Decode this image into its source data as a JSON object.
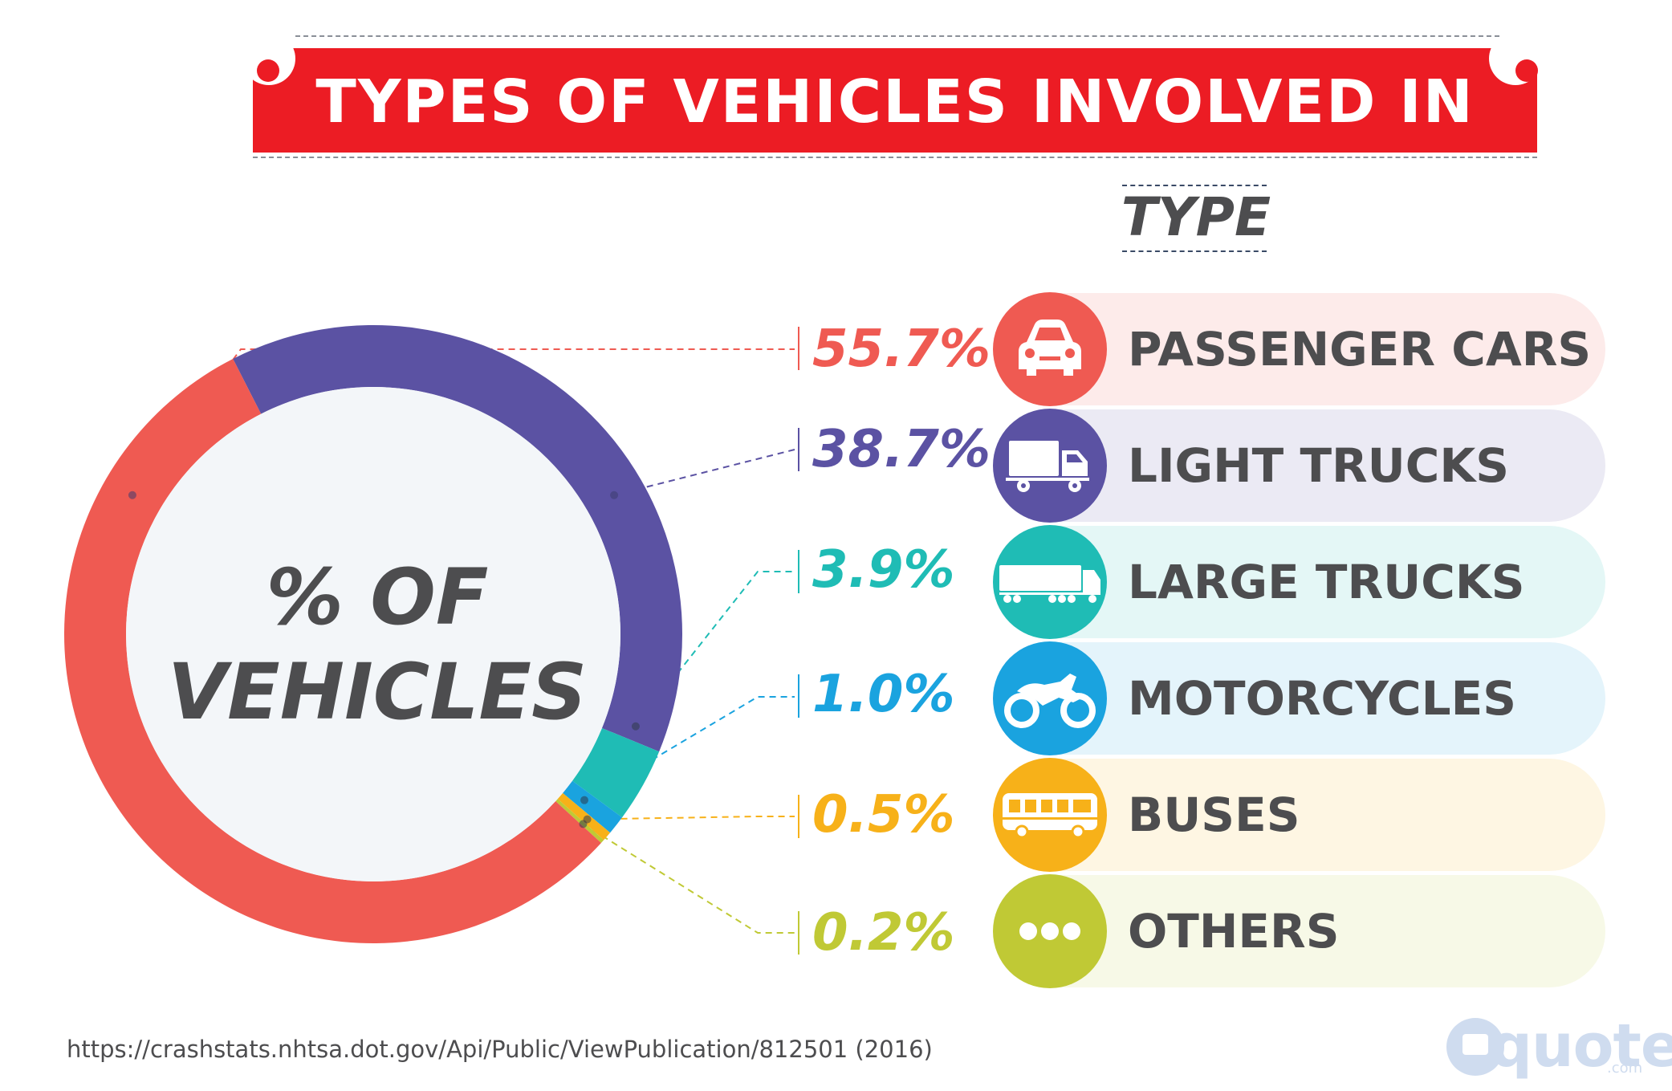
{
  "colors": {
    "banner": "#ec1c24",
    "passenger_cars": "#ef5a52",
    "light_trucks": "#5b52a3",
    "large_trucks": "#1fbcb5",
    "motorcycles": "#1aa3df",
    "buses": "#f7b119",
    "others": "#c0c935",
    "center_fill": "#f3f6f9",
    "text_dark": "#4d4d4f"
  },
  "title": "Types of Vehicles Involved in Crashes",
  "type_heading": "TYPE",
  "center_label_line1": "% OF",
  "center_label_line2": "VEHICLES",
  "chart_data": {
    "type": "pie",
    "title": "Types of Vehicles Involved in Crashes",
    "center_label": "% OF VEHICLES",
    "legend_heading": "TYPE",
    "categories": [
      "PASSENGER CARS",
      "LIGHT TRUCKS",
      "LARGE TRUCKS",
      "MOTORCYCLES",
      "BUSES",
      "OTHERS"
    ],
    "values": [
      55.7,
      38.7,
      3.9,
      1.0,
      0.5,
      0.2
    ],
    "value_labels": [
      "55.7%",
      "38.7%",
      "3.9%",
      "1.0%",
      "0.5%",
      "0.2%"
    ],
    "unit": "%",
    "legend_placement": "right"
  },
  "rows": [
    {
      "label": "PASSENGER CARS",
      "pct": "55.7%",
      "icon": "car-icon"
    },
    {
      "label": "LIGHT TRUCKS",
      "pct": "38.7%",
      "icon": "truck-icon"
    },
    {
      "label": "LARGE TRUCKS",
      "pct": "3.9%",
      "icon": "semi-truck-icon"
    },
    {
      "label": "MOTORCYCLES",
      "pct": "1.0%",
      "icon": "motorcycle-icon"
    },
    {
      "label": "BUSES",
      "pct": "0.5%",
      "icon": "bus-icon"
    },
    {
      "label": "OTHERS",
      "pct": "0.2%",
      "icon": "ellipsis-icon"
    }
  ],
  "source": "https://crashstats.nhtsa.dot.gov/Api/Public/ViewPublication/812501  (2016)",
  "logo": {
    "text": "quote",
    "sub": ".com"
  }
}
